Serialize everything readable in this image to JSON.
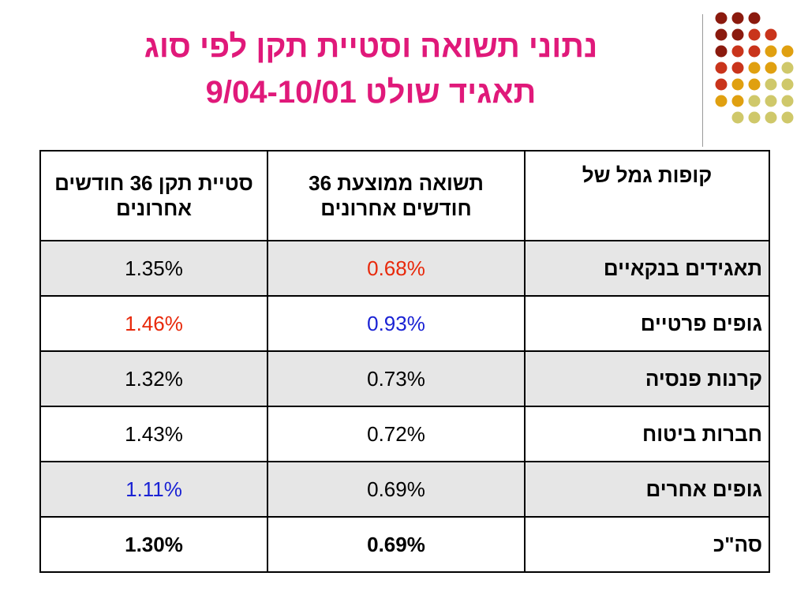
{
  "title": {
    "line1": "נתוני תשואה וסטיית תקן לפי סוג",
    "line2": "תאגיד שולט 9/04-10/01"
  },
  "colors": {
    "title": "#e0197a",
    "highlight_red": "#e8290b",
    "highlight_blue": "#1a22d4",
    "shaded_row": "#e6e6e6",
    "dot_palette": [
      "#8b1a0e",
      "#c9341b",
      "#e0a010",
      "#cfc86a"
    ]
  },
  "table": {
    "headers": {
      "fund_type": "קופות גמל של",
      "avg_return": "תשואה ממוצעת 36 חודשים אחרונים",
      "std_dev": "סטיית תקן 36 חודשים אחרונים"
    },
    "rows": [
      {
        "label": "תאגידים בנקאיים",
        "avg_return": "0.68%",
        "std_dev": "1.35%"
      },
      {
        "label": "גופים פרטיים",
        "avg_return": "0.93%",
        "std_dev": "1.46%"
      },
      {
        "label": "קרנות פנסיה",
        "avg_return": "0.73%",
        "std_dev": "1.32%"
      },
      {
        "label": "חברות ביטוח",
        "avg_return": "0.72%",
        "std_dev": "1.43%"
      },
      {
        "label": "גופים אחרים",
        "avg_return": "0.69%",
        "std_dev": "1.11%"
      },
      {
        "label": "סה\"כ",
        "avg_return": "0.69%",
        "std_dev": "1.30%"
      }
    ]
  }
}
